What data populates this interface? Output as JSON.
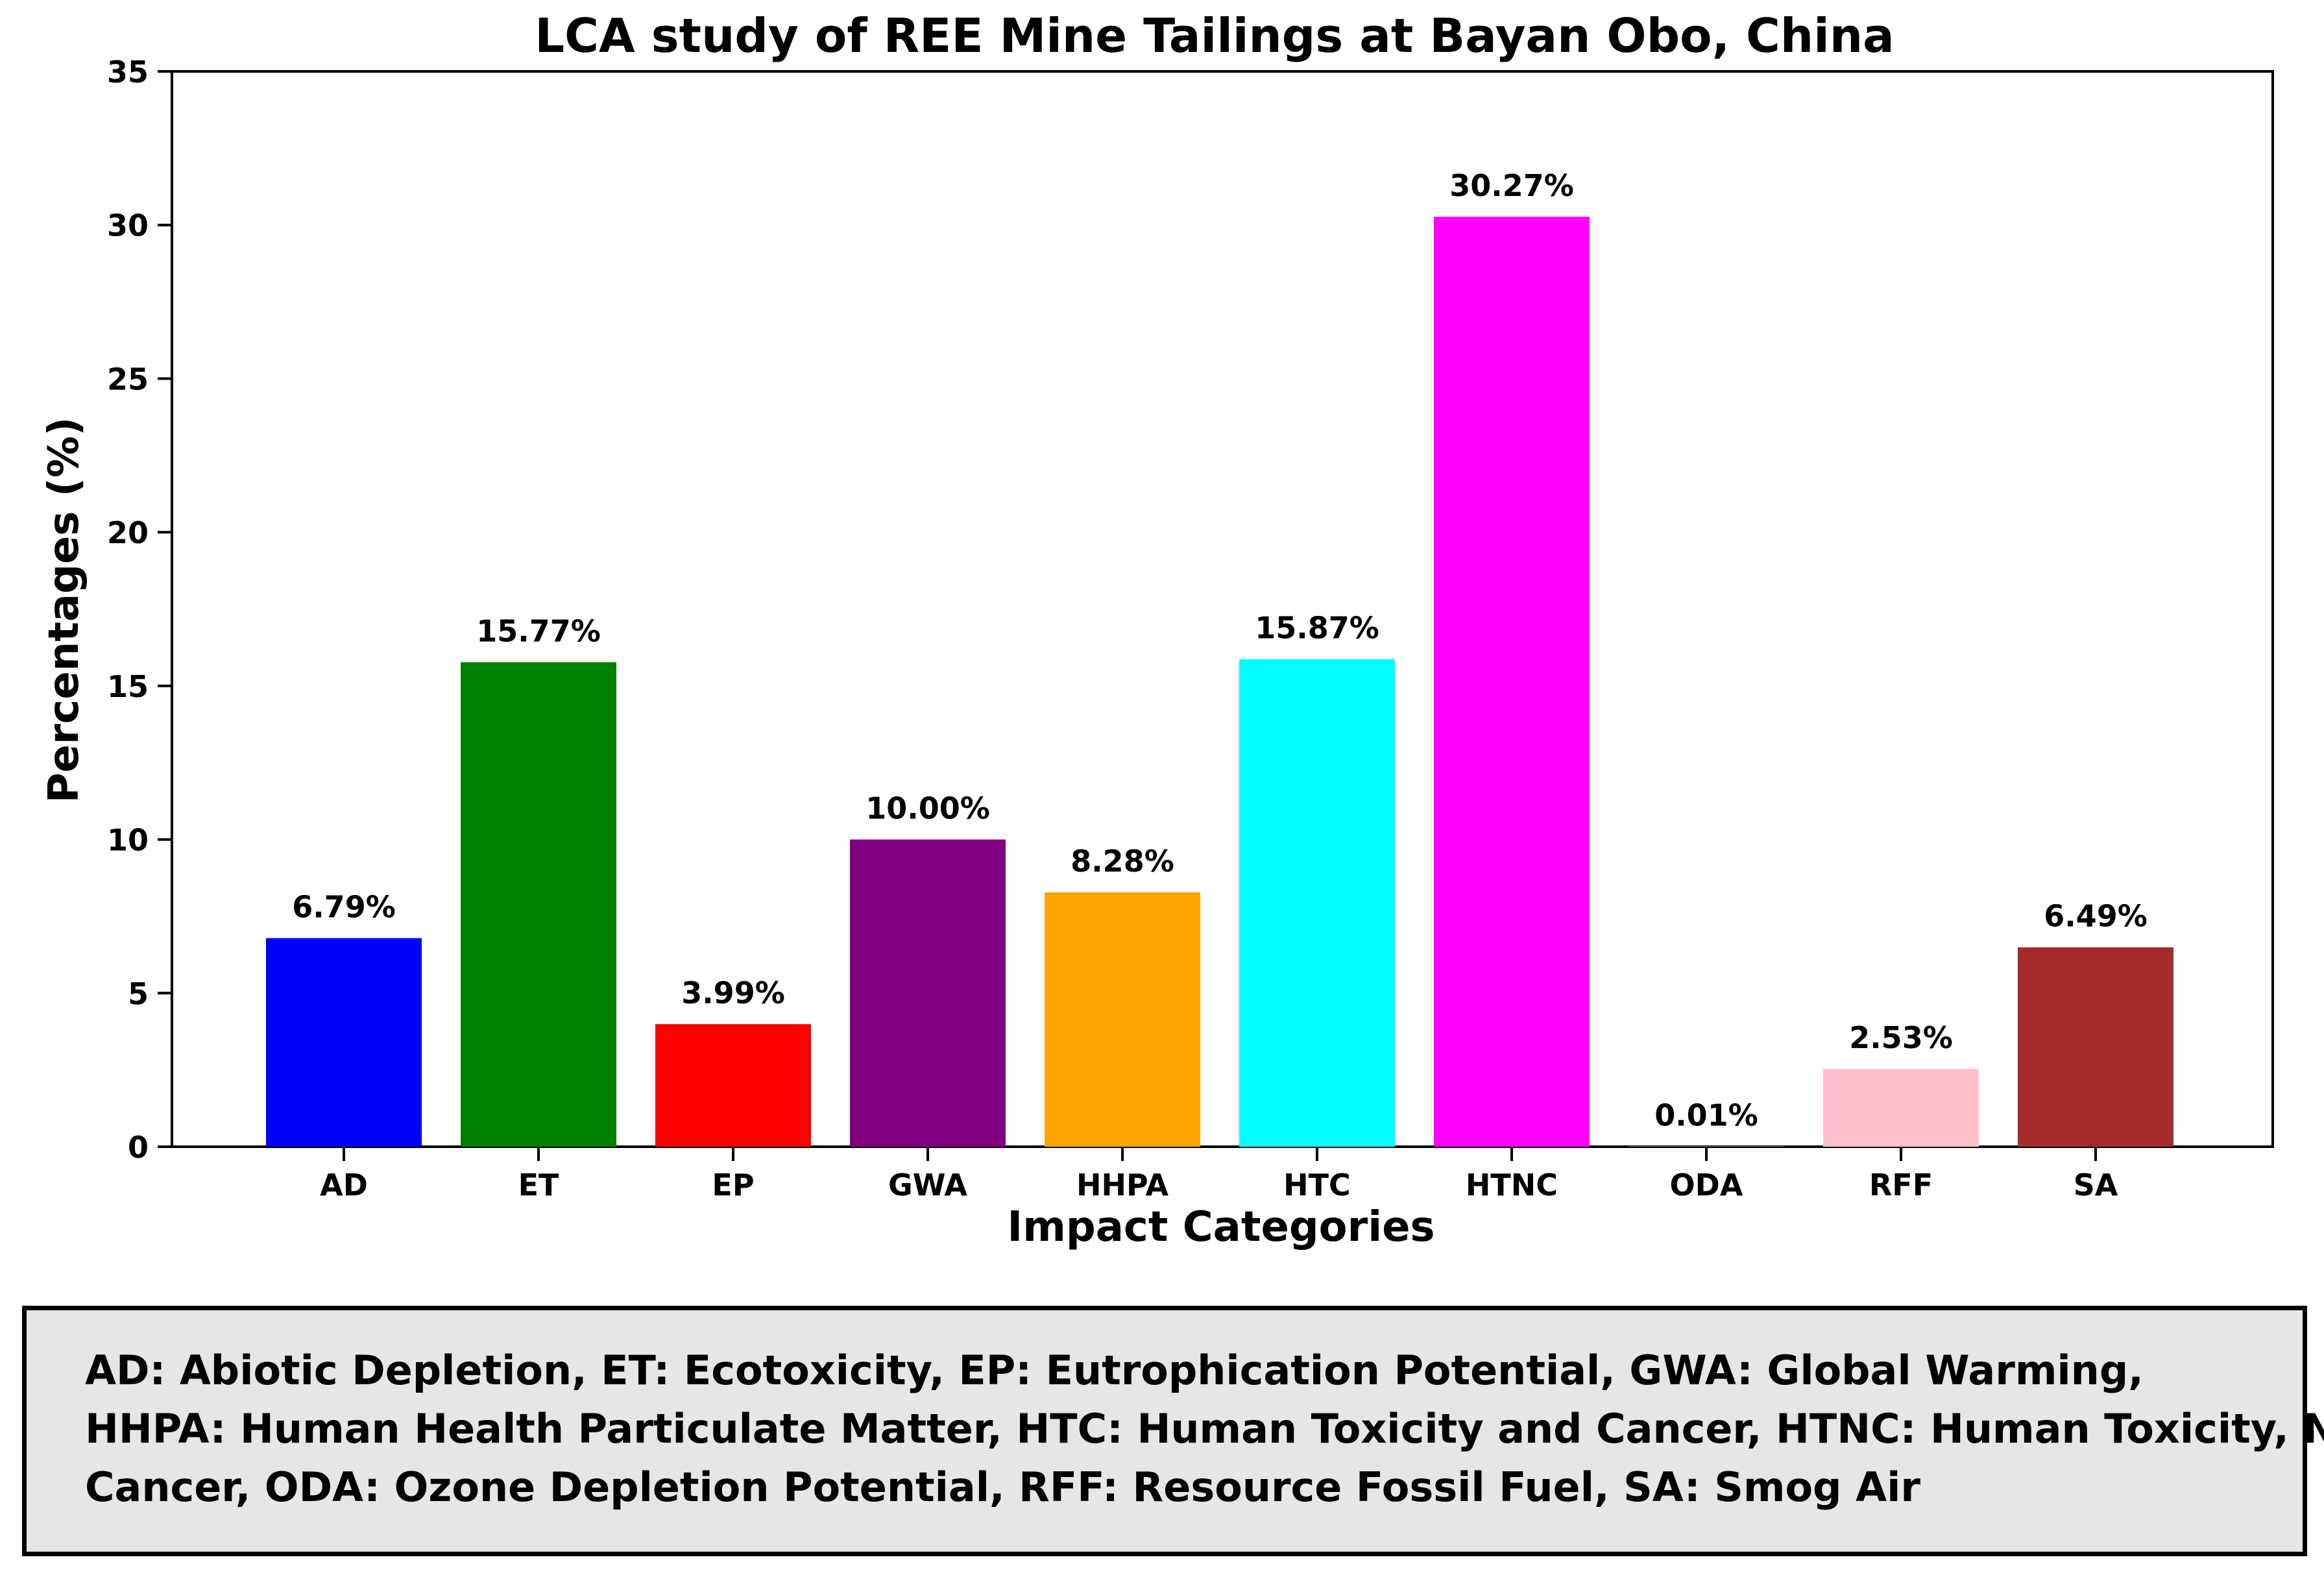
{
  "chart_data": {
    "type": "bar",
    "title": "LCA study of REE Mine Tailings at Bayan Obo, China",
    "xlabel": "Impact Categories",
    "ylabel": "Percentages (%)",
    "ylim": [
      0,
      35
    ],
    "yticks": [
      0,
      5,
      10,
      15,
      20,
      25,
      30,
      35
    ],
    "grid": false,
    "categories": [
      "AD",
      "ET",
      "EP",
      "GWA",
      "HHPA",
      "HTC",
      "HTNC",
      "ODA",
      "RFF",
      "SA"
    ],
    "values": [
      6.79,
      15.77,
      3.99,
      10.0,
      8.28,
      15.87,
      30.27,
      0.01,
      2.53,
      6.49
    ],
    "data_labels": [
      "6.79%",
      "15.77%",
      "3.99%",
      "10.00%",
      "8.28%",
      "15.87%",
      "30.27%",
      "0.01%",
      "2.53%",
      "6.49%"
    ],
    "colors": [
      "#0000ff",
      "#008000",
      "#ff0000",
      "#800080",
      "#ffa500",
      "#00ffff",
      "#ff00ff",
      "#ffffff",
      "#ffc0cb",
      "#a52a2a"
    ]
  },
  "legend": {
    "lines": [
      "AD: Abiotic Depletion, ET: Ecotoxicity, EP: Eutrophication Potential, GWA: Global Warming,",
      "HHPA: Human Health Particulate Matter, HTC: Human Toxicity and Cancer, HTNC: Human Toxicity, Non-",
      "Cancer, ODA: Ozone Depletion Potential, RFF: Resource Fossil Fuel, SA: Smog Air"
    ]
  }
}
